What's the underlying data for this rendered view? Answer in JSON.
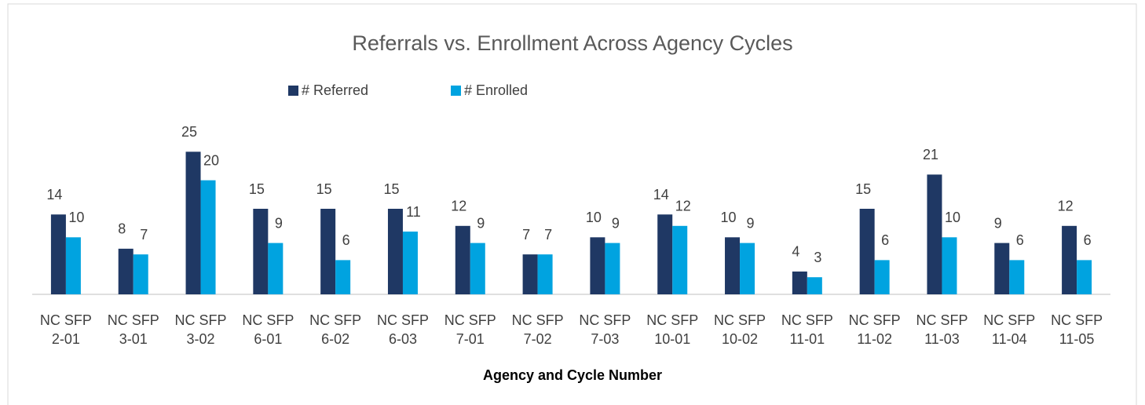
{
  "chart_data": {
    "type": "bar",
    "title": "Referrals vs. Enrollment Across Agency Cycles",
    "x_label": "Agency and Cycle Number",
    "categories": [
      "NC SFP 2-01",
      "NC SFP 3-01",
      "NC SFP 3-02",
      "NC SFP 6-01",
      "NC SFP 6-02",
      "NC SFP 6-03",
      "NC SFP 7-01",
      "NC SFP 7-02",
      "NC SFP 7-03",
      "NC SFP 10-01",
      "NC SFP 10-02",
      "NC SFP 11-01",
      "NC SFP 11-02",
      "NC SFP 11-03",
      "NC SFP 11-04",
      "NC SFP 11-05"
    ],
    "series": [
      {
        "name": "# Referred",
        "color": "#1f3864",
        "values": [
          14,
          8,
          25,
          15,
          15,
          15,
          12,
          7,
          10,
          14,
          10,
          4,
          15,
          21,
          9,
          12
        ]
      },
      {
        "name": "# Enrolled",
        "color": "#00a3e0",
        "values": [
          10,
          7,
          20,
          9,
          6,
          11,
          9,
          7,
          9,
          12,
          9,
          3,
          6,
          10,
          6,
          6
        ]
      }
    ],
    "ylim": [
      0,
      30
    ],
    "legend": "top"
  }
}
